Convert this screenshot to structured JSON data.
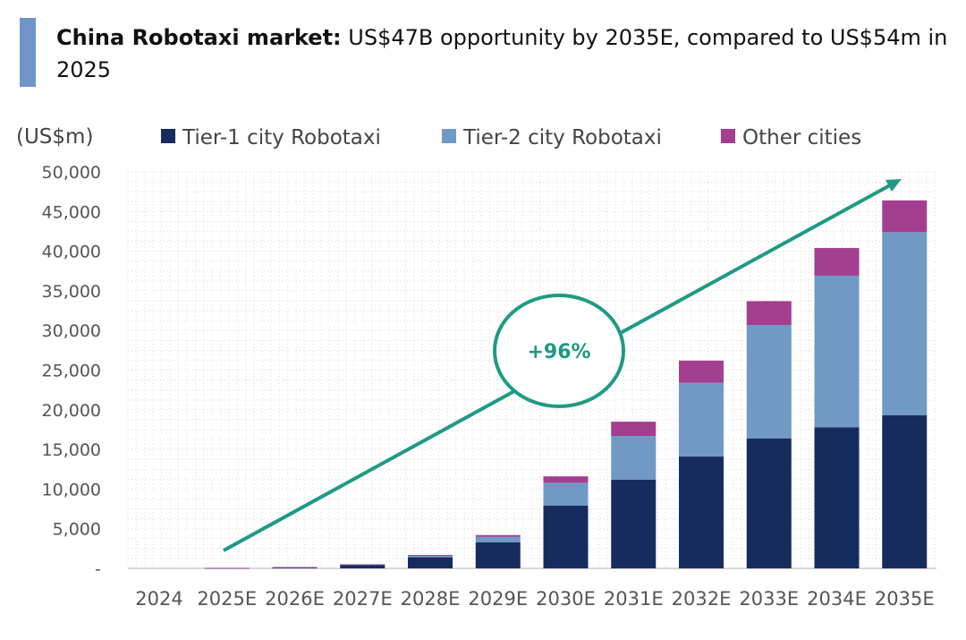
{
  "title": {
    "bold": "China Robotaxi market:",
    "rest": " US$47B opportunity by 2035E, compared to US$54m in 2025"
  },
  "chart_data": {
    "type": "bar",
    "stacked": true,
    "unit_label": "(US$m)",
    "categories": [
      "2024",
      "2025E",
      "2026E",
      "2027E",
      "2028E",
      "2029E",
      "2030E",
      "2031E",
      "2032E",
      "2033E",
      "2034E",
      "2035E"
    ],
    "series": [
      {
        "name": "Tier-1 city Robotaxi",
        "color": "#172c5e",
        "values": [
          0,
          40,
          120,
          450,
          1400,
          3300,
          7900,
          11200,
          14100,
          16400,
          17800,
          19300
        ]
      },
      {
        "name": "Tier-2 city Robotaxi",
        "color": "#7199c6",
        "values": [
          0,
          10,
          30,
          50,
          250,
          700,
          2900,
          5500,
          9300,
          14300,
          19100,
          23100
        ]
      },
      {
        "name": "Other cities",
        "color": "#a43e8e",
        "values": [
          0,
          4,
          10,
          20,
          50,
          200,
          800,
          1800,
          2800,
          3000,
          3500,
          4000
        ]
      }
    ],
    "ylim": [
      0,
      50000
    ],
    "yticks": [
      0,
      5000,
      10000,
      15000,
      20000,
      25000,
      30000,
      35000,
      40000,
      45000,
      50000
    ],
    "ytick_labels": [
      "-",
      "5,000",
      "10,000",
      "15,000",
      "20,000",
      "25,000",
      "30,000",
      "35,000",
      "40,000",
      "45,000",
      "50,000"
    ],
    "grid": true,
    "legend": "top",
    "annotation": {
      "text": "+96%",
      "color": "#1f9a84"
    }
  }
}
